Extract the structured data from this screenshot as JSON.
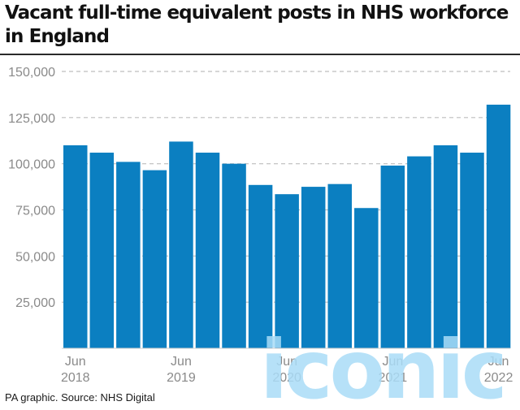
{
  "title": "Vacant full-time equivalent posts in NHS workforce in England",
  "source": "PA graphic. Source: NHS Digital",
  "watermark_text": "iconic",
  "colors": {
    "bar": "#0b7fc1",
    "grid": "#bdbdbd",
    "tick_text": "#8a8a8a",
    "watermark": "#a9dcf7"
  },
  "chart_data": {
    "type": "bar",
    "title": "Vacant full-time equivalent posts in NHS workforce in England",
    "xlabel": "",
    "ylabel": "",
    "ylim": [
      0,
      150000
    ],
    "yticks": [
      25000,
      50000,
      75000,
      100000,
      125000,
      150000
    ],
    "ytick_labels": [
      "25,000",
      "50,000",
      "75,000",
      "100,000",
      "125,000",
      "150,000"
    ],
    "grid": true,
    "categories": [
      "Jun 2018",
      "Sep 2018",
      "Dec 2018",
      "Mar 2019",
      "Jun 2019",
      "Sep 2019",
      "Dec 2019",
      "Mar 2020",
      "Jun 2020",
      "Sep 2020",
      "Dec 2020",
      "Mar 2021",
      "Jun 2021",
      "Sep 2021",
      "Dec 2021",
      "Mar 2022",
      "Jun 2022"
    ],
    "values": [
      110000,
      106000,
      101000,
      96500,
      112000,
      106000,
      100000,
      88500,
      83500,
      87500,
      89000,
      76000,
      99000,
      104000,
      110000,
      106000,
      132000
    ],
    "x_tick_labels": [
      {
        "index": 0,
        "line1": "Jun",
        "line2": "2018"
      },
      {
        "index": 4,
        "line1": "Jun",
        "line2": "2019"
      },
      {
        "index": 8,
        "line1": "Jun",
        "line2": "2020"
      },
      {
        "index": 12,
        "line1": "Jun",
        "line2": "2021"
      },
      {
        "index": 16,
        "line1": "Jun",
        "line2": "2022"
      }
    ]
  }
}
